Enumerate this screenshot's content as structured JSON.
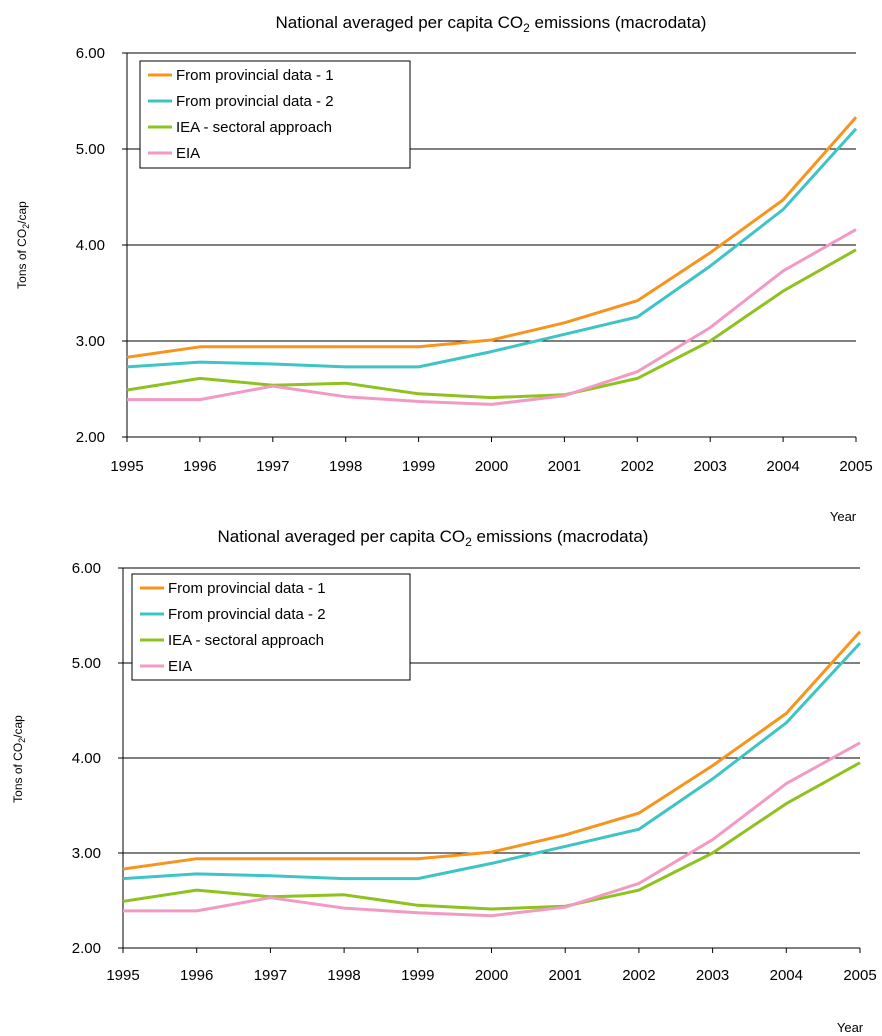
{
  "chart_data": [
    {
      "type": "line",
      "title_main": "National averaged per capita CO",
      "title_sub": "2",
      "title_tail": " emissions (macrodata)",
      "ylabel_main": "Tons of CO",
      "ylabel_sub": "2",
      "ylabel_tail": "/cap",
      "xlabel": "Year",
      "x": [
        "1995",
        "1996",
        "1997",
        "1998",
        "1999",
        "2000",
        "2001",
        "2002",
        "2003",
        "2004",
        "2005"
      ],
      "ylim": [
        2.0,
        6.0
      ],
      "yticks": [
        "2.00",
        "3.00",
        "4.00",
        "5.00",
        "6.00"
      ],
      "grid": true,
      "legend_position": "top-left",
      "series": [
        {
          "name": "From provincial data - 1",
          "color": "#f7941d",
          "values": [
            2.83,
            2.94,
            2.94,
            2.94,
            2.94,
            3.01,
            3.19,
            3.42,
            3.92,
            4.47,
            5.33
          ]
        },
        {
          "name": "From provincial data - 2",
          "color": "#3ec4c4",
          "values": [
            2.73,
            2.78,
            2.76,
            2.73,
            2.73,
            2.89,
            3.07,
            3.25,
            3.78,
            4.37,
            5.21
          ]
        },
        {
          "name": "IEA - sectoral approach",
          "color": "#8dc21f",
          "values": [
            2.49,
            2.61,
            2.54,
            2.56,
            2.45,
            2.41,
            2.44,
            2.61,
            3.0,
            3.52,
            3.95
          ]
        },
        {
          "name": "EIA",
          "color": "#f29ac4",
          "values": [
            2.39,
            2.39,
            2.53,
            2.42,
            2.37,
            2.34,
            2.43,
            2.68,
            3.14,
            3.73,
            4.16
          ]
        }
      ]
    },
    {
      "type": "line",
      "title_main": "National averaged per capita CO",
      "title_sub": "2",
      "title_tail": " emissions (macrodata)",
      "ylabel_main": "Tons of CO",
      "ylabel_sub": "2",
      "ylabel_tail": "/cap",
      "xlabel": "Year",
      "x": [
        "1995",
        "1996",
        "1997",
        "1998",
        "1999",
        "2000",
        "2001",
        "2002",
        "2003",
        "2004",
        "2005"
      ],
      "ylim": [
        2.0,
        6.0
      ],
      "yticks": [
        "2.00",
        "3.00",
        "4.00",
        "5.00",
        "6.00"
      ],
      "grid": true,
      "legend_position": "top-left",
      "series": [
        {
          "name": "From provincial data - 1",
          "color": "#f7941d",
          "values": [
            2.83,
            2.94,
            2.94,
            2.94,
            2.94,
            3.01,
            3.19,
            3.42,
            3.92,
            4.47,
            5.33
          ]
        },
        {
          "name": "From provincial data - 2",
          "color": "#3ec4c4",
          "values": [
            2.73,
            2.78,
            2.76,
            2.73,
            2.73,
            2.89,
            3.07,
            3.25,
            3.78,
            4.37,
            5.21
          ]
        },
        {
          "name": "IEA - sectoral approach",
          "color": "#8dc21f",
          "values": [
            2.49,
            2.61,
            2.54,
            2.56,
            2.45,
            2.41,
            2.44,
            2.61,
            3.0,
            3.52,
            3.95
          ]
        },
        {
          "name": "EIA",
          "color": "#f29ac4",
          "values": [
            2.39,
            2.39,
            2.53,
            2.42,
            2.37,
            2.34,
            2.43,
            2.68,
            3.14,
            3.73,
            4.16
          ]
        }
      ]
    }
  ]
}
